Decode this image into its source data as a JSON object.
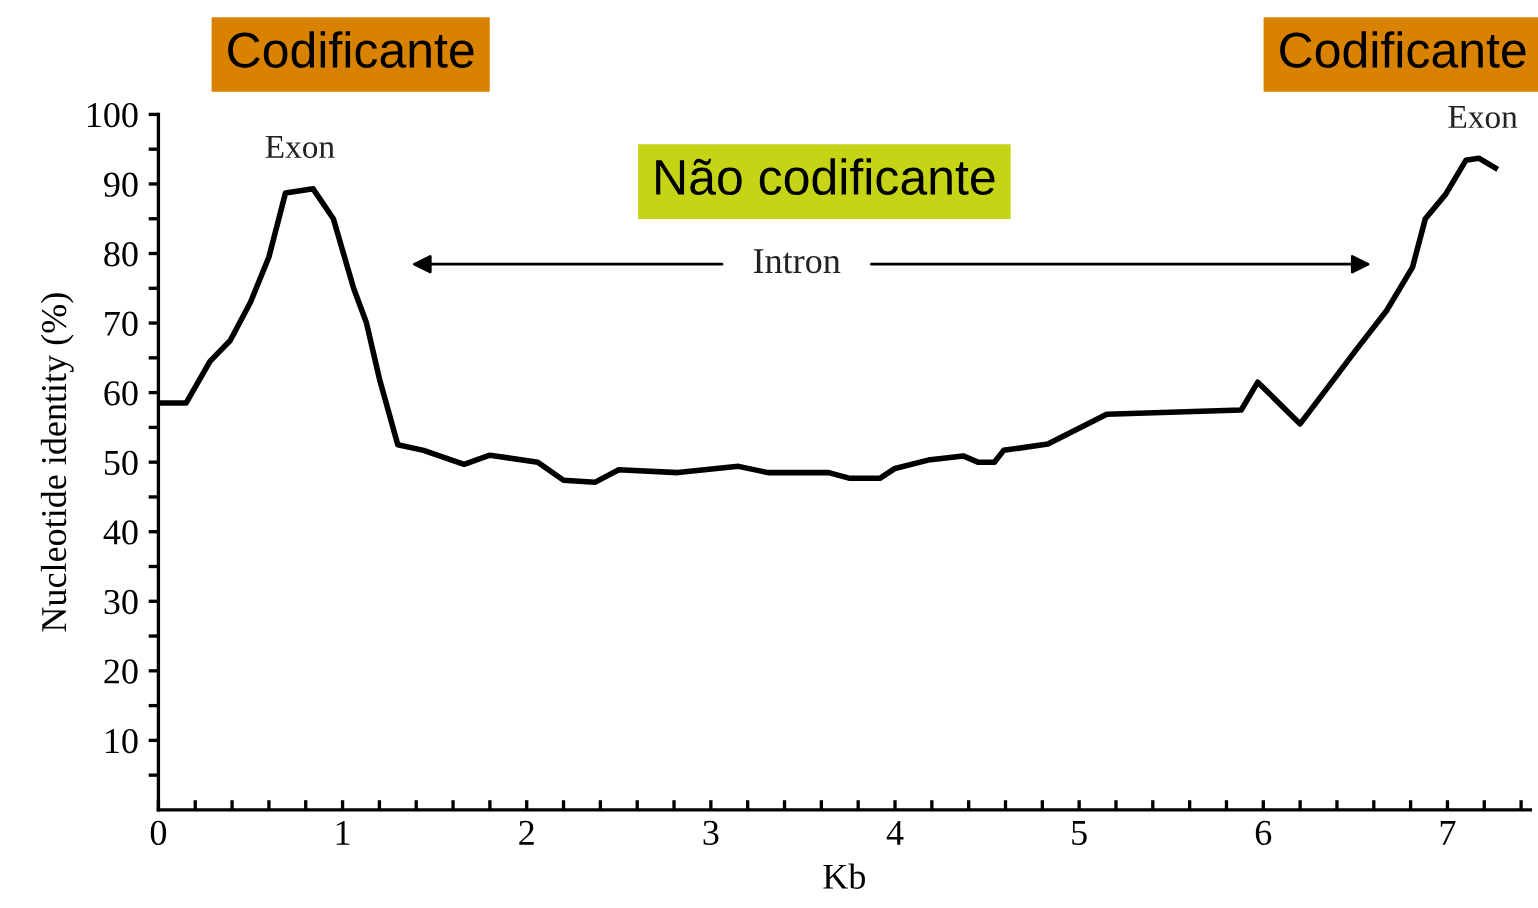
{
  "chart_data": {
    "type": "line",
    "xlabel": "Kb",
    "ylabel": "Nucleotide identity (%)",
    "x": [
      0,
      0.15,
      0.28,
      0.39,
      0.5,
      0.6,
      0.69,
      0.84,
      0.95,
      1.06,
      1.13,
      1.2,
      1.3,
      1.44,
      1.66,
      1.8,
      2.06,
      2.2,
      2.37,
      2.5,
      2.82,
      3.15,
      3.31,
      3.64,
      3.75,
      3.92,
      4.0,
      4.18,
      4.37,
      4.45,
      4.54,
      4.59,
      4.83,
      5.15,
      5.88,
      5.97,
      6.2,
      6.38,
      6.5,
      6.67,
      6.81,
      6.88,
      6.99,
      7.1,
      7.17,
      7.26
    ],
    "series": [
      {
        "color": "#000000",
        "values": [
          58.5,
          58.5,
          64.5,
          67.5,
          73,
          79.5,
          88.7,
          89.3,
          85,
          75,
          70,
          62,
          52.5,
          51.7,
          49.7,
          51,
          50,
          47.4,
          47.1,
          48.9,
          48.5,
          49.4,
          48.5,
          48.5,
          47.7,
          47.7,
          49.1,
          50.3,
          50.9,
          50,
          50,
          51.7,
          52.6,
          56.9,
          57.5,
          61.5,
          55.5,
          61.8,
          66,
          71.8,
          78,
          85,
          88.5,
          93.4,
          93.7,
          92.3
        ]
      }
    ],
    "xlim": [
      0,
      7.45
    ],
    "ylim": [
      0,
      100
    ],
    "xticks": [
      0,
      {
        "value": 0.2,
        "label": null
      },
      {
        "value": 0.4,
        "label": null
      },
      {
        "value": 0.6,
        "label": null
      },
      {
        "value": 0.8,
        "label": null
      },
      1,
      {
        "value": 1.2,
        "label": null
      },
      {
        "value": 1.4,
        "label": null
      },
      {
        "value": 1.6,
        "label": null
      },
      {
        "value": 1.8,
        "label": null
      },
      2,
      {
        "value": 2.2,
        "label": null
      },
      {
        "value": 2.4,
        "label": null
      },
      {
        "value": 2.6,
        "label": null
      },
      {
        "value": 2.8,
        "label": null
      },
      3,
      {
        "value": 3.2,
        "label": null
      },
      {
        "value": 3.4,
        "label": null
      },
      {
        "value": 3.6,
        "label": null
      },
      {
        "value": 3.8,
        "label": null
      },
      4,
      {
        "value": 4.2,
        "label": null
      },
      {
        "value": 4.4,
        "label": null
      },
      {
        "value": 4.6,
        "label": null
      },
      {
        "value": 4.8,
        "label": null
      },
      5,
      {
        "value": 5.2,
        "label": null
      },
      {
        "value": 5.4,
        "label": null
      },
      {
        "value": 5.6,
        "label": null
      },
      {
        "value": 5.8,
        "label": null
      },
      6,
      {
        "value": 6.2,
        "label": null
      },
      {
        "value": 6.4,
        "label": null
      },
      {
        "value": 6.6,
        "label": null
      },
      {
        "value": 6.8,
        "label": null
      },
      7,
      {
        "value": 7.2,
        "label": null
      },
      {
        "value": 7.4,
        "label": null
      }
    ],
    "yticks": [
      {
        "value": 5,
        "label": null
      },
      10,
      {
        "value": 15,
        "label": null
      },
      20,
      {
        "value": 25,
        "label": null
      },
      30,
      {
        "value": 35,
        "label": null
      },
      40,
      {
        "value": 45,
        "label": null
      },
      50,
      {
        "value": 55,
        "label": null
      },
      60,
      {
        "value": 65,
        "label": null
      },
      70,
      {
        "value": 75,
        "label": null
      },
      80,
      {
        "value": 85,
        "label": null
      },
      90,
      {
        "value": 95,
        "label": null
      },
      100
    ],
    "annotations": [
      "Exon",
      "Exon",
      "Intron",
      "Codificante",
      "Codificante",
      "Não codificante"
    ],
    "grid": false,
    "legend": false,
    "marker": "none",
    "line_style": "solid"
  }
}
